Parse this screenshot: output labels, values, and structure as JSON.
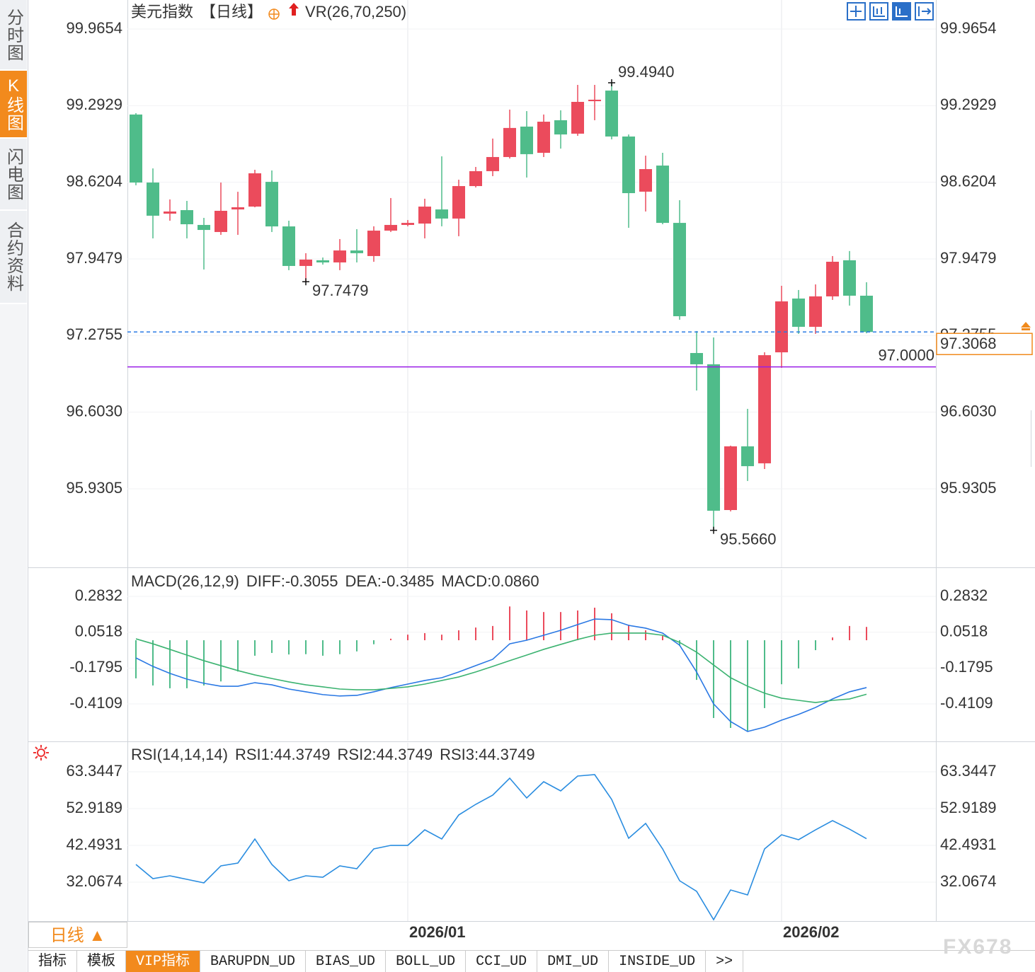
{
  "ui": {
    "sidebar": [
      "分时图",
      "K线图",
      "闪电图",
      "合约资料"
    ],
    "period_button": "日线 ▲",
    "tabs": [
      "指标",
      "模板",
      "VIP指标",
      "BARUPDN_UD",
      "BIAS_UD",
      "BOLL_UD",
      "CCI_UD",
      "DMI_UD",
      "INSIDE_UD",
      ">>"
    ],
    "watermark": "FX678"
  },
  "chart_data": [
    {
      "type": "candlestick",
      "title": "美元指数",
      "period": "【日线】",
      "indicator": "VR(26,70,250)",
      "up_color": "#eb4b5c",
      "down_color": "#4fbc8a",
      "categories": [
        null,
        null,
        null,
        null,
        null,
        null,
        null,
        null,
        null,
        null,
        null,
        null,
        null,
        null,
        null,
        null,
        "2026/01",
        null,
        null,
        null,
        null,
        null,
        null,
        null,
        null,
        null,
        null,
        null,
        null,
        null,
        null,
        null,
        null,
        null,
        null,
        null,
        null,
        null,
        "2026/02",
        null,
        null,
        null,
        null,
        null
      ],
      "open": [
        99.215,
        98.618,
        98.345,
        98.376,
        98.246,
        98.184,
        98.382,
        98.407,
        98.624,
        98.233,
        97.886,
        97.936,
        97.917,
        98.022,
        97.973,
        98.196,
        98.246,
        98.258,
        98.382,
        98.302,
        98.587,
        98.718,
        98.842,
        99.109,
        98.879,
        99.165,
        99.047,
        99.332,
        99.425,
        99.022,
        98.538,
        98.767,
        98.264,
        97.122,
        97.023,
        95.744,
        96.303,
        96.154,
        97.128,
        97.6,
        97.352,
        97.619,
        97.936,
        97.625
      ],
      "high": [
        99.227,
        98.742,
        98.47,
        98.457,
        98.308,
        98.618,
        98.537,
        98.73,
        98.724,
        98.283,
        97.998,
        97.96,
        98.122,
        98.209,
        98.234,
        98.482,
        98.289,
        98.476,
        98.848,
        98.643,
        98.755,
        99.004,
        99.258,
        99.245,
        99.215,
        99.252,
        99.475,
        99.475,
        99.494,
        99.04,
        98.854,
        98.879,
        98.463,
        97.315,
        97.259,
        96.309,
        96.632,
        97.128,
        97.712,
        97.675,
        97.724,
        97.973,
        98.017,
        97.743
      ],
      "low": [
        98.594,
        98.128,
        98.283,
        98.128,
        97.855,
        98.159,
        98.159,
        98.401,
        98.184,
        97.849,
        97.7479,
        97.898,
        97.849,
        97.917,
        97.923,
        98.184,
        98.234,
        98.128,
        98.234,
        98.147,
        98.575,
        98.674,
        98.829,
        98.662,
        98.842,
        98.916,
        99.028,
        99.165,
        98.997,
        98.221,
        98.364,
        98.252,
        97.414,
        96.793,
        95.566,
        95.732,
        95.999,
        96.104,
        96.992,
        97.29,
        97.29,
        97.588,
        97.538,
        97.295
      ],
      "close": [
        98.618,
        98.327,
        98.364,
        98.252,
        98.202,
        98.37,
        98.401,
        98.699,
        98.233,
        97.886,
        97.942,
        97.917,
        98.022,
        97.998,
        98.196,
        98.246,
        98.264,
        98.407,
        98.302,
        98.587,
        98.718,
        98.842,
        99.097,
        98.867,
        99.152,
        99.04,
        99.326,
        99.345,
        99.022,
        98.525,
        98.736,
        98.264,
        97.445,
        97.023,
        95.738,
        96.303,
        96.129,
        97.103,
        97.575,
        97.352,
        97.619,
        97.923,
        97.625,
        97.3068
      ],
      "ylim": [
        95.241,
        100.22
      ],
      "yticks": [
        {
          "value": 99.9654,
          "label": "99.9654"
        },
        {
          "value": 99.2929,
          "label": "99.2929"
        },
        {
          "value": 98.6204,
          "label": "98.6204"
        },
        {
          "value": 97.9479,
          "label": "97.9479"
        },
        {
          "value": 97.2755,
          "label": "97.2755"
        },
        {
          "value": 96.603,
          "label": "96.6030"
        },
        {
          "value": 95.9305,
          "label": "95.9305"
        }
      ],
      "annotations": [
        {
          "value": {
            "value": 99.494,
            "label": "99.4940"
          },
          "kind": "high",
          "color": "#eb4b5c"
        },
        {
          "value": 97.7479,
          "kind": "low",
          "color": "#4fbc8a"
        },
        {
          "value": {
            "value": 95.566,
            "label": "95.5660"
          },
          "kind": "low",
          "color": "#4fbc8a"
        }
      ],
      "lines": [
        {
          "value": {
            "value": 97,
            "label": "97.0000"
          },
          "color": "#9a1ee6",
          "dash": false
        },
        {
          "value": 97.3068,
          "color": "#2a7be4",
          "dash": true,
          "box_color": "#f08a1c"
        }
      ]
    },
    {
      "type": "macd",
      "title": "MACD(26,12,9)",
      "up_color": "#eb4b5c",
      "down_color": "#4fbc8a",
      "ylim": [
        -0.6483,
        0.4567
      ],
      "yticks": [
        {
          "value": 0.2832,
          "label": "0.2832"
        },
        {
          "value": 0.0518,
          "label": "0.0518"
        },
        {
          "value": -0.1795,
          "label": "-0.1795"
        },
        {
          "value": -0.4109,
          "label": "-0.4109"
        }
      ],
      "series": [
        {
          "name": "DIFF:-0.3055",
          "color": "#2a78e4",
          "style": "line",
          "values": [
            -0.114,
            -0.169,
            -0.214,
            -0.251,
            -0.278,
            -0.297,
            -0.297,
            -0.274,
            -0.288,
            -0.315,
            -0.333,
            -0.351,
            -0.36,
            -0.356,
            -0.333,
            -0.306,
            -0.283,
            -0.26,
            -0.242,
            -0.205,
            -0.164,
            -0.123,
            -0.023,
            0,
            0.032,
            0.064,
            0.101,
            0.137,
            0.133,
            0.096,
            0.078,
            0.046,
            -0.032,
            -0.205,
            -0.411,
            -0.525,
            -0.589,
            -0.561,
            -0.516,
            -0.479,
            -0.434,
            -0.379,
            -0.333,
            -0.3055
          ]
        },
        {
          "name": "DEA:-0.3485",
          "color": "#3cb371",
          "style": "line",
          "values": [
            0.009,
            -0.023,
            -0.059,
            -0.096,
            -0.132,
            -0.164,
            -0.196,
            -0.224,
            -0.247,
            -0.269,
            -0.288,
            -0.301,
            -0.315,
            -0.32,
            -0.32,
            -0.311,
            -0.301,
            -0.283,
            -0.26,
            -0.237,
            -0.205,
            -0.169,
            -0.132,
            -0.096,
            -0.059,
            -0.027,
            0.005,
            0.032,
            0.046,
            0.046,
            0.046,
            0.032,
            -0.014,
            -0.077,
            -0.16,
            -0.242,
            -0.297,
            -0.342,
            -0.374,
            -0.388,
            -0.402,
            -0.388,
            -0.379,
            -0.3485
          ]
        },
        {
          "name": "MACD:0.0860",
          "color": "#4ab0f0",
          "style": "bar",
          "values": [
            -0.246,
            -0.292,
            -0.31,
            -0.31,
            -0.292,
            -0.266,
            -0.202,
            -0.1,
            -0.082,
            -0.092,
            -0.09,
            -0.1,
            -0.09,
            -0.072,
            -0.026,
            0.01,
            0.036,
            0.046,
            0.036,
            0.064,
            0.082,
            0.092,
            0.218,
            0.192,
            0.182,
            0.182,
            0.192,
            0.21,
            0.174,
            0.1,
            0.064,
            0.028,
            -0.036,
            -0.256,
            -0.502,
            -0.566,
            -0.584,
            -0.438,
            -0.284,
            -0.182,
            -0.064,
            0.018,
            0.092,
            0.086
          ]
        }
      ]
    },
    {
      "type": "line",
      "title": "RSI(14,14,14)",
      "ylim": [
        21.04,
        71.565
      ],
      "yticks": [
        {
          "value": 63.3447,
          "label": "63.3447"
        },
        {
          "value": 52.9189,
          "label": "52.9189"
        },
        {
          "value": 42.4931,
          "label": "42.4931"
        },
        {
          "value": 32.0674,
          "label": "32.0674"
        }
      ],
      "series": [
        {
          "name": "RSI1:44.3749",
          "color": "#2a8de0",
          "values": [
            37.08,
            33.07,
            33.87,
            32.87,
            31.87,
            36.68,
            37.48,
            44.3,
            37.08,
            32.47,
            33.87,
            33.47,
            36.68,
            35.88,
            41.49,
            42.49,
            42.49,
            46.9,
            44.3,
            51.11,
            54.12,
            56.73,
            61.54,
            55.93,
            60.54,
            57.93,
            62.14,
            62.54,
            55.52,
            44.5,
            48.71,
            41.49,
            32.47,
            29.46,
            21.44,
            29.86,
            28.46,
            41.49,
            45.5,
            44.1,
            46.9,
            49.51,
            47.1,
            44.3749
          ]
        }
      ],
      "legend_extra": [
        {
          "name": "RSI2:44.3749",
          "color": "#4dbb7f"
        },
        {
          "name": "RSI3:44.3749",
          "color": "#4ab0f0"
        }
      ]
    }
  ]
}
